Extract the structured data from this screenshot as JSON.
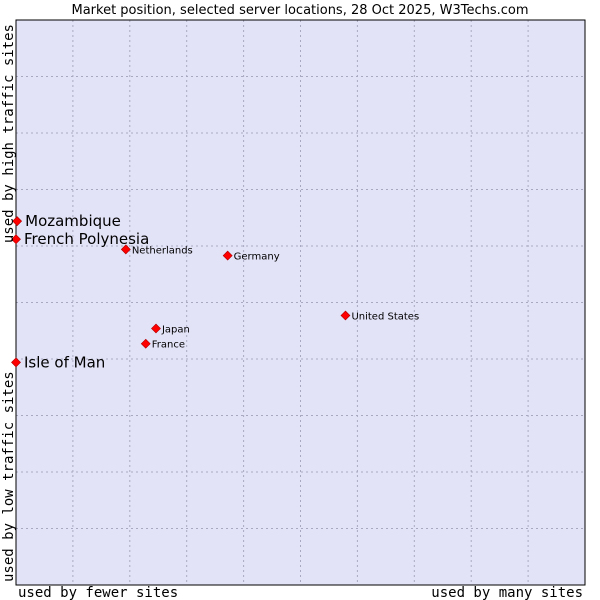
{
  "chart_data": {
    "type": "scatter",
    "title": "Market position, selected server locations, 28 Oct 2025, W3Techs.com",
    "xlabel_left": "used by fewer sites",
    "xlabel_right": "used by many sites",
    "ylabel_bottom": "used by low traffic sites",
    "ylabel_top": "used by high traffic sites",
    "xlim": [
      0,
      100
    ],
    "ylim": [
      0,
      100
    ],
    "grid": true,
    "colors": {
      "plot_bg": "#e3e3f8",
      "grid": "#a8a8c0",
      "frame": "#000000",
      "marker": "#ff0000"
    },
    "points": [
      {
        "label": "Mozambique",
        "x": 0.2,
        "y": 64.4,
        "emphasis": true
      },
      {
        "label": "French Polynesia",
        "x": 0.0,
        "y": 61.2,
        "emphasis": true
      },
      {
        "label": "Isle of Man",
        "x": 0.0,
        "y": 39.4,
        "emphasis": true
      },
      {
        "label": "Netherlands",
        "x": 19.3,
        "y": 59.4,
        "emphasis": false
      },
      {
        "label": "Germany",
        "x": 37.2,
        "y": 58.3,
        "emphasis": false
      },
      {
        "label": "United States",
        "x": 57.9,
        "y": 47.7,
        "emphasis": false
      },
      {
        "label": "Japan",
        "x": 24.6,
        "y": 45.4,
        "emphasis": false
      },
      {
        "label": "France",
        "x": 22.8,
        "y": 42.7,
        "emphasis": false
      }
    ]
  }
}
